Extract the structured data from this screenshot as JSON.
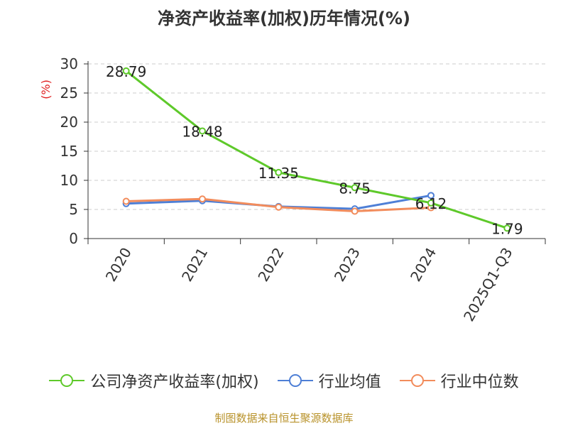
{
  "chart_data": {
    "type": "line",
    "title": "净资产收益率(加权)历年情况(%)",
    "ylabel": "(%)",
    "xlabel": "",
    "ylim": [
      0,
      30
    ],
    "yticks": [
      0,
      5,
      10,
      15,
      20,
      25,
      30
    ],
    "categories": [
      "2020",
      "2021",
      "2022",
      "2023",
      "2024",
      "2025Q1-Q3"
    ],
    "series": [
      {
        "name": "公司净资产收益率(加权)",
        "color": "#5ec92a",
        "values": [
          28.79,
          18.48,
          11.35,
          8.75,
          6.12,
          1.79
        ],
        "labels": [
          "28.79",
          "18.48",
          "11.35",
          "8.75",
          "6.12",
          "1.79"
        ]
      },
      {
        "name": "行业均值",
        "color": "#4e7fd6",
        "values": [
          6.0,
          6.5,
          5.5,
          5.1,
          7.4,
          null
        ]
      },
      {
        "name": "行业中位数",
        "color": "#f28c5c",
        "values": [
          6.4,
          6.8,
          5.4,
          4.7,
          5.3,
          null
        ]
      }
    ],
    "grid": true,
    "legend_position": "bottom"
  },
  "footer": {
    "source": "制图数据来自恒生聚源数据库"
  }
}
